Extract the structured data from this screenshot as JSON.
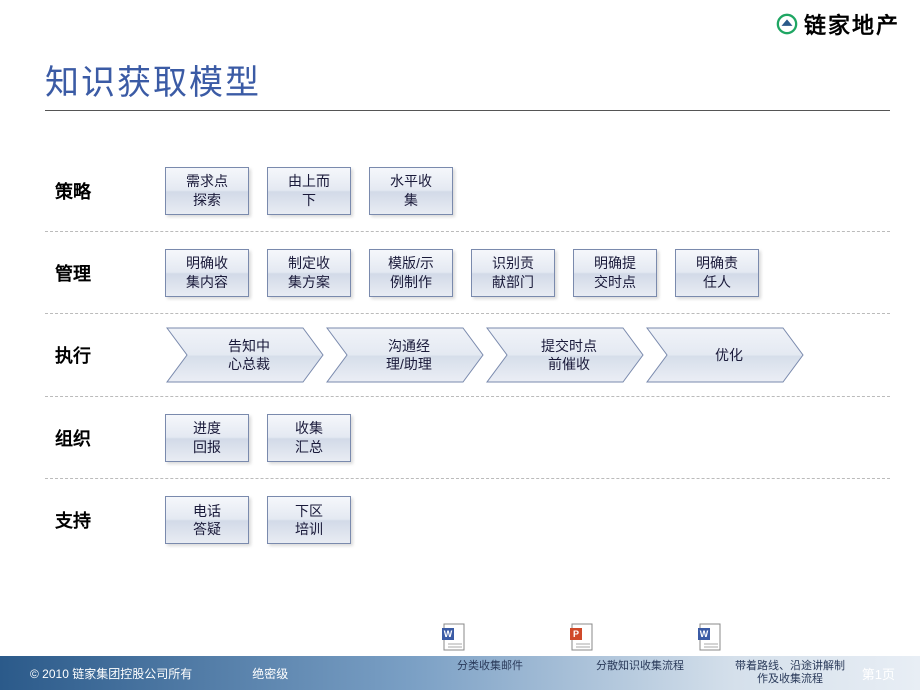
{
  "logo_text": "链家地产",
  "title": "知识获取模型",
  "colors": {
    "title": "#3b5ba5",
    "box_border": "#7a8aad",
    "box_text": "#1a1a3a",
    "chevron_fill_top": "#f0f3f8",
    "chevron_fill_bottom": "#dbe2ed",
    "chevron_stroke": "#7a8aad",
    "divider": "#bbbbbb",
    "footer_grad_start": "#2b5a8a",
    "footer_grad_end": "#e8eef5",
    "logo_green": "#1fa663",
    "logo_blue": "#2b5a8a"
  },
  "rows": {
    "r0": {
      "label": "策略",
      "items": [
        "需求点\n探索",
        "由上而\n下",
        "水平收\n集"
      ]
    },
    "r1": {
      "label": "管理",
      "items": [
        "明确收\n集内容",
        "制定收\n集方案",
        "模版/示\n例制作",
        "识别贡\n献部门",
        "明确提\n交时点",
        "明确责\n任人"
      ]
    },
    "r2": {
      "label": "执行",
      "items": [
        "告知中\n心总裁",
        "沟通经\n理/助理",
        "提交时点\n前催收",
        "优化"
      ]
    },
    "r3": {
      "label": "组织",
      "items": [
        "进度\n回报",
        "收集\n汇总"
      ]
    },
    "r4": {
      "label": "支持",
      "items": [
        "电话\n答疑",
        "下区\n培训"
      ]
    }
  },
  "footer": {
    "copyright": "© 2010 链家集团控股公司所有",
    "secret": "绝密级",
    "links": [
      "分类收集邮件",
      "分散知识收集流程",
      "带着路线、沿途讲解制作及收集流程"
    ],
    "page": "第1页"
  },
  "doc_icons": {
    "word_color": "#3b5ba5",
    "ppt_color": "#d04a2a"
  }
}
